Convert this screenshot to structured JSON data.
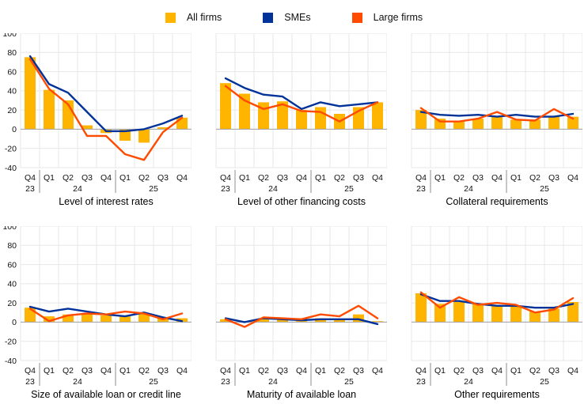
{
  "legend": {
    "items": [
      {
        "label": "All firms",
        "color": "#FFB400",
        "marker": "square"
      },
      {
        "label": "SMEs",
        "color": "#003299",
        "marker": "square"
      },
      {
        "label": "Large firms",
        "color": "#FF4B00",
        "marker": "square"
      }
    ]
  },
  "axis": {
    "y_ticks": [
      100,
      80,
      60,
      40,
      20,
      0,
      -20,
      -40
    ],
    "y_range": [
      -40,
      100
    ],
    "quarters": [
      "Q4",
      "Q1",
      "Q2",
      "Q3",
      "Q4",
      "Q1",
      "Q2",
      "Q3",
      "Q4"
    ],
    "year_groups": [
      {
        "label": "23",
        "start": 0,
        "end": 0
      },
      {
        "label": "24",
        "start": 1,
        "end": 4
      },
      {
        "label": "25",
        "start": 5,
        "end": 8
      }
    ]
  },
  "colors": {
    "grid": "#e7e7e7",
    "zero_line": "#a8a8a8",
    "separator": "#8c8c8c",
    "tick_text": "#111111"
  },
  "chart_data": [
    {
      "type": "bar",
      "title": "Level of interest rates",
      "categories": [
        "Q4 23",
        "Q1 24",
        "Q2 24",
        "Q3 24",
        "Q4 24",
        "Q1 25",
        "Q2 25",
        "Q3 25",
        "Q4 25"
      ],
      "ylim": [
        -40,
        100
      ],
      "grid": true,
      "show_y_labels": true,
      "series": [
        {
          "name": "All firms",
          "type": "bar",
          "color": "#FFB400",
          "values": [
            75,
            41,
            30,
            4,
            -4,
            -12,
            -14,
            2,
            12
          ]
        },
        {
          "name": "SMEs",
          "type": "line",
          "color": "#003299",
          "values": [
            76,
            47,
            38,
            18,
            -2,
            -2,
            0,
            6,
            14
          ]
        },
        {
          "name": "Large firms",
          "type": "line",
          "color": "#FF4B00",
          "values": [
            73,
            42,
            26,
            -7,
            -7,
            -26,
            -32,
            -3,
            12
          ]
        }
      ]
    },
    {
      "type": "bar",
      "title": "Level of other financing costs",
      "categories": [
        "Q4 23",
        "Q1 24",
        "Q2 24",
        "Q3 24",
        "Q4 24",
        "Q1 25",
        "Q2 25",
        "Q3 25",
        "Q4 25"
      ],
      "ylim": [
        -40,
        100
      ],
      "grid": true,
      "show_y_labels": false,
      "series": [
        {
          "name": "All firms",
          "type": "bar",
          "color": "#FFB400",
          "values": [
            48,
            37,
            28,
            29,
            20,
            23,
            16,
            23,
            28
          ]
        },
        {
          "name": "SMEs",
          "type": "line",
          "color": "#003299",
          "values": [
            53,
            43,
            36,
            34,
            21,
            28,
            24,
            26,
            28
          ]
        },
        {
          "name": "Large firms",
          "type": "line",
          "color": "#FF4B00",
          "values": [
            45,
            30,
            21,
            26,
            19,
            18,
            8,
            19,
            28
          ]
        }
      ]
    },
    {
      "type": "bar",
      "title": "Collateral requirements",
      "categories": [
        "Q4 23",
        "Q1 24",
        "Q2 24",
        "Q3 24",
        "Q4 24",
        "Q1 25",
        "Q2 25",
        "Q3 25",
        "Q4 25"
      ],
      "ylim": [
        -40,
        100
      ],
      "grid": true,
      "show_y_labels": false,
      "series": [
        {
          "name": "All firms",
          "type": "bar",
          "color": "#FFB400",
          "values": [
            20,
            11,
            9,
            11,
            13,
            10,
            10,
            14,
            13
          ]
        },
        {
          "name": "SMEs",
          "type": "line",
          "color": "#003299",
          "values": [
            18,
            15,
            14,
            15,
            13,
            15,
            13,
            13,
            16
          ]
        },
        {
          "name": "Large firms",
          "type": "line",
          "color": "#FF4B00",
          "values": [
            22,
            8,
            8,
            11,
            18,
            10,
            9,
            21,
            11
          ]
        }
      ]
    },
    {
      "type": "bar",
      "title": "Size of available loan or credit line",
      "categories": [
        "Q4 23",
        "Q1 24",
        "Q2 24",
        "Q3 24",
        "Q4 24",
        "Q1 25",
        "Q2 25",
        "Q3 25",
        "Q4 25"
      ],
      "ylim": [
        -40,
        100
      ],
      "grid": true,
      "show_y_labels": true,
      "series": [
        {
          "name": "All firms",
          "type": "bar",
          "color": "#FFB400",
          "values": [
            15,
            6,
            8,
            9,
            7,
            6,
            9,
            4,
            4
          ]
        },
        {
          "name": "SMEs",
          "type": "line",
          "color": "#003299",
          "values": [
            16,
            11,
            14,
            11,
            8,
            6,
            10,
            5,
            1
          ]
        },
        {
          "name": "Large firms",
          "type": "line",
          "color": "#FF4B00",
          "values": [
            14,
            1,
            7,
            9,
            8,
            11,
            9,
            3,
            9
          ]
        }
      ]
    },
    {
      "type": "bar",
      "title": "Maturity of available loan",
      "categories": [
        "Q4 23",
        "Q1 24",
        "Q2 24",
        "Q3 24",
        "Q4 24",
        "Q1 25",
        "Q2 25",
        "Q3 25",
        "Q4 25"
      ],
      "ylim": [
        -40,
        100
      ],
      "grid": true,
      "show_y_labels": false,
      "series": [
        {
          "name": "All firms",
          "type": "bar",
          "color": "#FFB400",
          "values": [
            3,
            1,
            4,
            3,
            2,
            4,
            2,
            8,
            1
          ]
        },
        {
          "name": "SMEs",
          "type": "line",
          "color": "#003299",
          "values": [
            4,
            0,
            4,
            3,
            2,
            3,
            3,
            3,
            -2
          ]
        },
        {
          "name": "Large firms",
          "type": "line",
          "color": "#FF4B00",
          "values": [
            3,
            -5,
            5,
            4,
            3,
            8,
            6,
            17,
            4
          ]
        }
      ]
    },
    {
      "type": "bar",
      "title": "Other requirements",
      "categories": [
        "Q4 23",
        "Q1 24",
        "Q2 24",
        "Q3 24",
        "Q4 24",
        "Q1 25",
        "Q2 25",
        "Q3 25",
        "Q4 25"
      ],
      "ylim": [
        -40,
        100
      ],
      "grid": true,
      "show_y_labels": false,
      "series": [
        {
          "name": "All firms",
          "type": "bar",
          "color": "#FFB400",
          "values": [
            30,
            19,
            21,
            19,
            17,
            17,
            11,
            14,
            21
          ]
        },
        {
          "name": "SMEs",
          "type": "line",
          "color": "#003299",
          "values": [
            29,
            22,
            22,
            19,
            17,
            17,
            15,
            15,
            19
          ]
        },
        {
          "name": "Large firms",
          "type": "line",
          "color": "#FF4B00",
          "values": [
            31,
            15,
            26,
            18,
            20,
            18,
            10,
            13,
            25
          ]
        }
      ]
    }
  ]
}
